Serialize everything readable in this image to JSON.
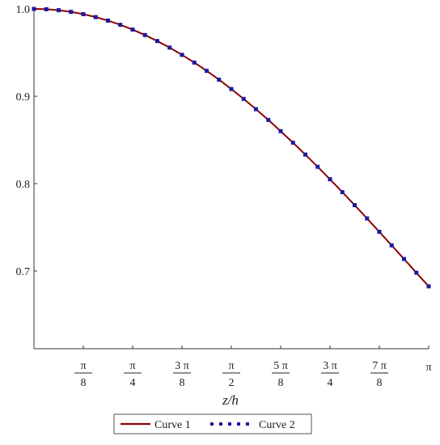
{
  "chart_data": {
    "type": "line",
    "title": "",
    "xlabel": "z/h",
    "ylabel": "",
    "xlim": [
      0,
      3.1416
    ],
    "ylim": [
      0.62,
      1.0
    ],
    "grid": false,
    "legend_position": "bottom",
    "x_ticks": [
      {
        "value": 0.3927,
        "num": "π",
        "den": "8"
      },
      {
        "value": 0.7854,
        "num": "π",
        "den": "4"
      },
      {
        "value": 1.1781,
        "num": "3 π",
        "den": "8"
      },
      {
        "value": 1.5708,
        "num": "π",
        "den": "2"
      },
      {
        "value": 1.9635,
        "num": "5 π",
        "den": "8"
      },
      {
        "value": 2.3562,
        "num": "3 π",
        "den": "4"
      },
      {
        "value": 2.7489,
        "num": "7 π",
        "den": "8"
      },
      {
        "value": 3.1416,
        "num": "π",
        "den": ""
      }
    ],
    "y_ticks": [
      {
        "value": 1.0,
        "label": "1.0"
      },
      {
        "value": 0.9,
        "label": "0.9"
      },
      {
        "value": 0.8,
        "label": "0.8"
      },
      {
        "value": 0.7,
        "label": "0.7"
      }
    ],
    "x": [
      0.0,
      0.0982,
      0.1963,
      0.2945,
      0.3927,
      0.4909,
      0.589,
      0.6872,
      0.7854,
      0.8836,
      0.9817,
      1.0799,
      1.1781,
      1.2763,
      1.3744,
      1.4726,
      1.5708,
      1.669,
      1.7671,
      1.8653,
      1.9635,
      2.0617,
      2.1598,
      2.258,
      2.3562,
      2.4544,
      2.5525,
      2.6507,
      2.7489,
      2.8471,
      2.9452,
      3.0434,
      3.1416
    ],
    "series": [
      {
        "name": "Curve 1",
        "color": "#8b0000",
        "style": "solid",
        "values": [
          1.0,
          0.9996,
          0.9985,
          0.9966,
          0.994,
          0.9906,
          0.9866,
          0.9818,
          0.9763,
          0.9701,
          0.9632,
          0.9557,
          0.9474,
          0.9386,
          0.9291,
          0.919,
          0.9083,
          0.897,
          0.8852,
          0.8729,
          0.8601,
          0.8469,
          0.8333,
          0.8193,
          0.805,
          0.7903,
          0.7754,
          0.7602,
          0.7449,
          0.7294,
          0.7138,
          0.6981,
          0.6825
        ]
      },
      {
        "name": "Curve 2",
        "color": "#1a1aa0",
        "style": "dotted",
        "values": [
          1.0,
          0.9996,
          0.9985,
          0.9966,
          0.994,
          0.9906,
          0.9866,
          0.9818,
          0.9763,
          0.9701,
          0.9632,
          0.9557,
          0.9474,
          0.9386,
          0.9291,
          0.919,
          0.9083,
          0.897,
          0.8852,
          0.8729,
          0.8601,
          0.8469,
          0.8333,
          0.8193,
          0.805,
          0.7903,
          0.7754,
          0.7602,
          0.7449,
          0.7294,
          0.7138,
          0.6981,
          0.6825
        ]
      }
    ]
  }
}
